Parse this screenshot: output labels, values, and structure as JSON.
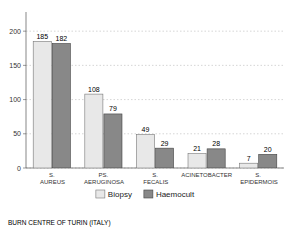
{
  "chart_data": {
    "type": "bar",
    "categories": [
      "S. AUREUS",
      "PS. AERUGINOSA",
      "S. FECALIS",
      "ACINETOBACTER",
      "S. EPIDERMOIS"
    ],
    "series": [
      {
        "name": "Biopsy",
        "color": "#e8e8e8",
        "values": [
          185,
          108,
          49,
          21,
          7
        ]
      },
      {
        "name": "Haemocult",
        "color": "#888888",
        "values": [
          182,
          79,
          29,
          28,
          20
        ]
      }
    ],
    "ylim": [
      0,
      228
    ],
    "yticks": [
      0,
      50,
      100,
      150,
      200
    ],
    "grid": true,
    "legend": "bottom",
    "data_labels": true,
    "annotations": [
      "BURN CENTRE OF TURIN (ITALY)"
    ]
  }
}
